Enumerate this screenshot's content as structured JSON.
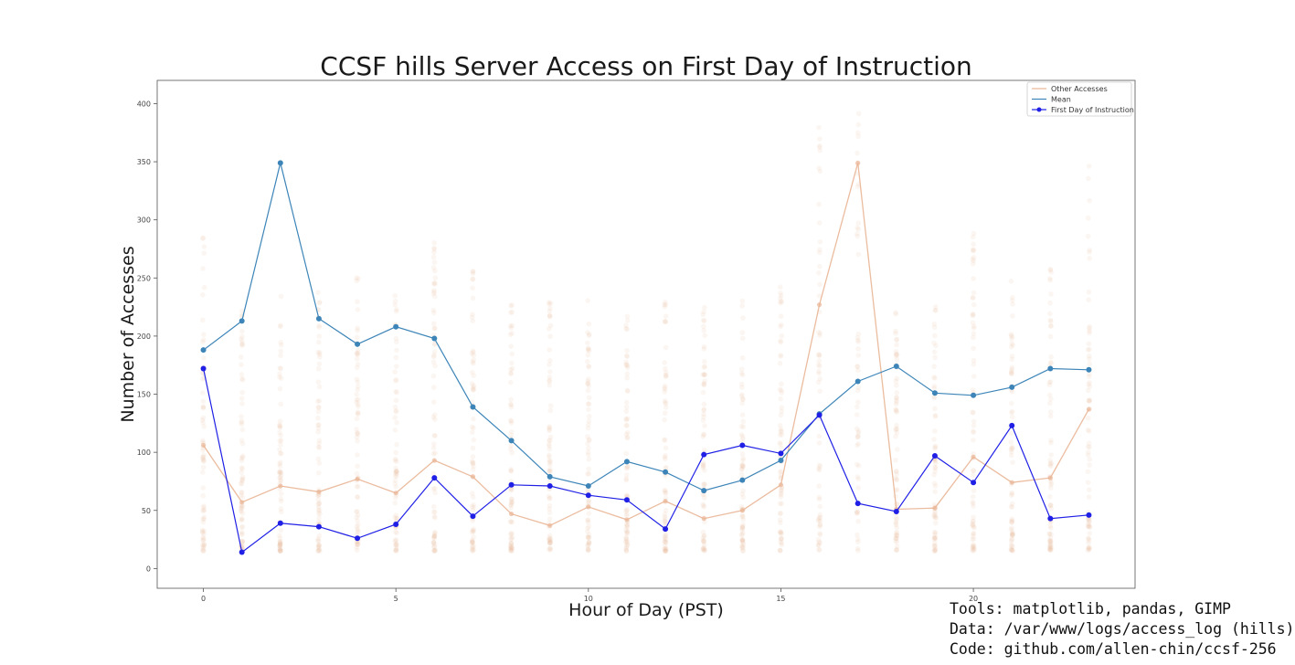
{
  "chart_data": {
    "type": "line",
    "title": "CCSF hills Server Access on First Day of Instruction",
    "xlabel": "Hour of Day (PST)",
    "ylabel": "Number of Accesses",
    "xlim": [
      -1.2,
      24.2
    ],
    "ylim": [
      -17,
      420
    ],
    "xticks": [
      0,
      5,
      10,
      15,
      20
    ],
    "yticks": [
      0,
      50,
      100,
      150,
      200,
      250,
      300,
      350,
      400
    ],
    "grid": false,
    "legend_position": "top-right",
    "x": [
      0,
      1,
      2,
      3,
      4,
      5,
      6,
      7,
      8,
      9,
      10,
      11,
      12,
      13,
      14,
      15,
      16,
      17,
      18,
      19,
      20,
      21,
      22,
      23
    ],
    "series": [
      {
        "name": "Other Accesses",
        "color": "#e9b595",
        "kind": "scatter-cloud",
        "values": [
          106,
          57,
          71,
          66,
          77,
          65,
          93,
          79,
          47,
          37,
          53,
          42,
          58,
          43,
          50,
          72,
          227,
          349,
          51,
          52,
          96,
          74,
          78,
          137
        ]
      },
      {
        "name": "Mean",
        "color": "#3d85b8",
        "kind": "line-with-markers",
        "values": [
          188,
          213,
          349,
          215,
          193,
          208,
          198,
          139,
          110,
          79,
          71,
          92,
          83,
          67,
          76,
          93,
          133,
          161,
          174,
          151,
          149,
          156,
          172,
          171
        ]
      },
      {
        "name": "First Day of Instruction",
        "color": "#1f1fe6",
        "kind": "line-with-markers",
        "values": [
          172,
          14,
          39,
          36,
          26,
          38,
          78,
          45,
          72,
          71,
          63,
          59,
          34,
          98,
          106,
          99,
          132,
          56,
          49,
          97,
          74,
          123,
          43,
          46
        ]
      }
    ]
  },
  "credits": {
    "tools": "Tools: matplotlib, pandas, GIMP",
    "data": "Data: /var/www/logs/access_log (hills)",
    "code": "Code: github.com/allen-chin/ccsf-256"
  }
}
